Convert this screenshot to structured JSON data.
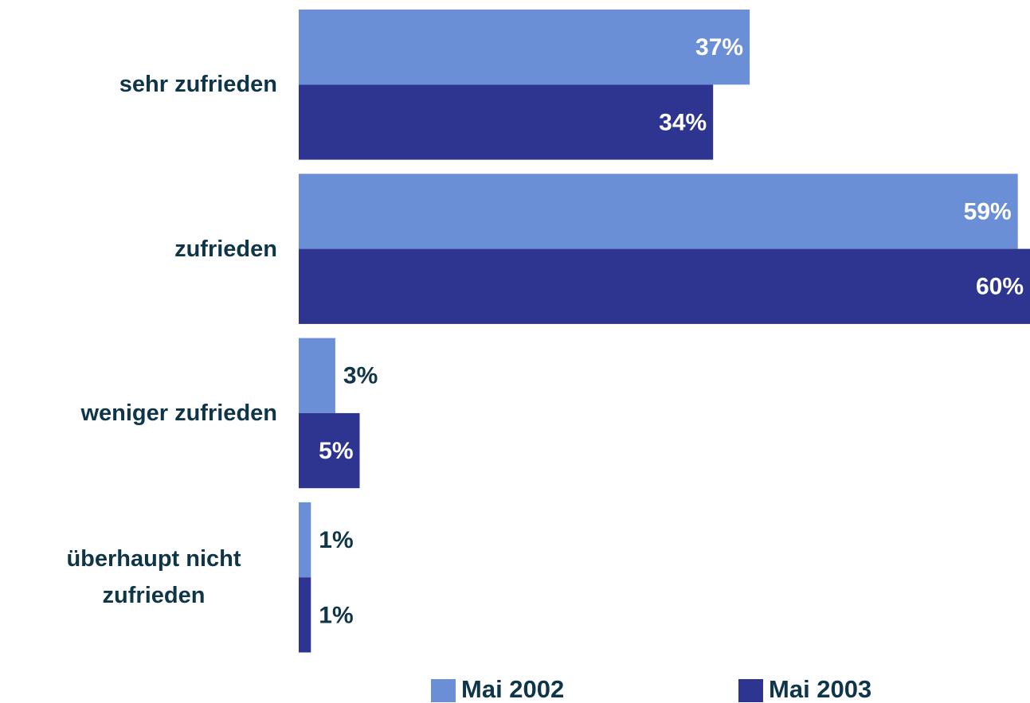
{
  "chart_data": {
    "type": "bar",
    "orientation": "horizontal",
    "categories": [
      "sehr zufrieden",
      "zufrieden",
      "weniger zufrieden",
      "überhaupt nicht zufrieden"
    ],
    "series": [
      {
        "name": "Mai 2002",
        "color": "#6b8fd6",
        "values": [
          37,
          59,
          3,
          1
        ],
        "value_labels": [
          "37%",
          "59%",
          "3%",
          "1%"
        ]
      },
      {
        "name": "Mai 2003",
        "color": "#2e3590",
        "values": [
          34,
          60,
          5,
          1
        ],
        "value_labels": [
          "34%",
          "60%",
          "5%",
          "1%"
        ]
      }
    ],
    "legend": "bottom"
  }
}
